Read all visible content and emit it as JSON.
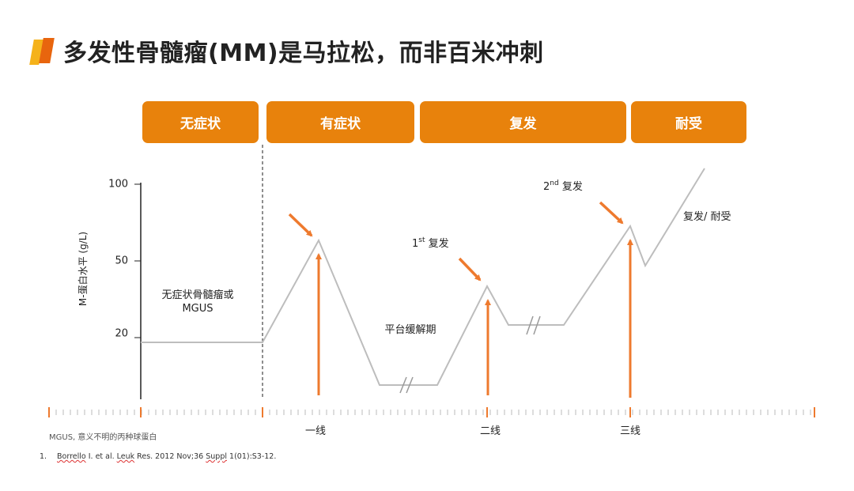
{
  "title": "多发性骨髓瘤(MM)是马拉松，而非百米冲刺",
  "phases": [
    "无症状",
    "有症状",
    "复发",
    "耐受"
  ],
  "y_axis": {
    "label": "M-蛋白水平 (g/L)",
    "ticks": [
      "100",
      "50",
      "20"
    ]
  },
  "annotations": {
    "asymptomatic_line1": "无症状骨髓瘤或",
    "asymptomatic_line2": "MGUS",
    "plateau": "平台缓解期",
    "first_relapse_num": "1",
    "first_relapse_sup": "st",
    "first_relapse_text": " 复发",
    "second_relapse_num": "2",
    "second_relapse_sup": "nd",
    "second_relapse_text": " 复发",
    "relapse_refractory": "复发/ 耐受"
  },
  "x_labels": [
    "一线",
    "二线",
    "三线"
  ],
  "footnote": "MGUS, 意义不明的丙种球蛋白",
  "reference": {
    "num": "1.",
    "author": "Borrello",
    "text_1": " I. et al. ",
    "journal": "Leuk",
    "text_2": " Res. 2012 Nov;36 ",
    "suppl": "Suppl",
    "text_3": " 1(01):S3-12."
  },
  "colors": {
    "orange": "#E8820C",
    "arrow_orange": "#EE7A2E",
    "line_gray": "#BDBDBD",
    "title_mark_yellow": "#F5B21A",
    "title_mark_orange": "#E8650E"
  }
}
